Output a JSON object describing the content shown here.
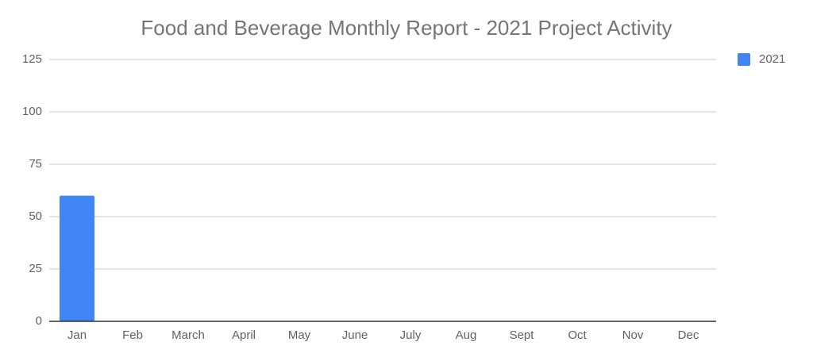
{
  "chart_data": {
    "type": "bar",
    "title": "Food and Beverage Monthly Report - 2021 Project Activity",
    "categories": [
      "Jan",
      "Feb",
      "March",
      "April",
      "May",
      "June",
      "July",
      "Aug",
      "Sept",
      "Oct",
      "Nov",
      "Dec"
    ],
    "series": [
      {
        "name": "2021",
        "color": "#4285f4",
        "values": [
          60,
          0,
          0,
          0,
          0,
          0,
          0,
          0,
          0,
          0,
          0,
          0
        ]
      }
    ],
    "ylim": [
      0,
      125
    ],
    "yticks": [
      0,
      25,
      50,
      75,
      100,
      125
    ],
    "grid": true,
    "legend": "right"
  }
}
